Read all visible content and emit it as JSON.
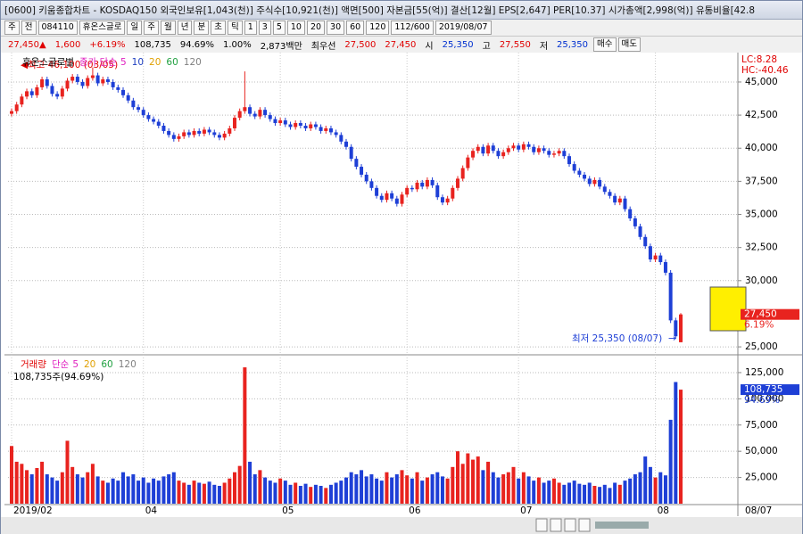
{
  "window": {
    "title": "[0600] 키움종합차트 - KOSDAQ150 외국인보유[1,043(천)] 주식수[10,921(천)] 액면[500] 자본금[55(억)] 결산[12월] EPS[2,647] PER[10.37] 시가총액[2,998(억)] 유통비율[42.8"
  },
  "toolbar": {
    "items": [
      "주",
      "전",
      "084110",
      "휴온스글로",
      "일",
      "주",
      "월",
      "년",
      "분",
      "초",
      "틱",
      "1",
      "3",
      "5",
      "10",
      "20",
      "30",
      "60",
      "120",
      "112/600",
      "2019/08/07"
    ]
  },
  "info": {
    "cells": [
      {
        "text": "27,450▲",
        "color": "#e00000"
      },
      {
        "text": "1,600",
        "color": "#e00000"
      },
      {
        "text": "+6.19%",
        "color": "#e00000"
      },
      {
        "text": "108,735",
        "color": "#000000"
      },
      {
        "text": "94.69%",
        "color": "#000000"
      },
      {
        "text": "1.00%",
        "color": "#000000"
      },
      {
        "text": "2,873백만",
        "color": "#000000"
      },
      {
        "text": "최우선",
        "color": "#000000"
      },
      {
        "text": "27,500",
        "color": "#e00000"
      },
      {
        "text": "27,450",
        "color": "#e00000"
      },
      {
        "text": "시",
        "color": "#000000"
      },
      {
        "text": "25,350",
        "color": "#0030d0"
      },
      {
        "text": "고",
        "color": "#000000"
      },
      {
        "text": "27,550",
        "color": "#e00000"
      },
      {
        "text": "저",
        "color": "#000000"
      },
      {
        "text": "25,350",
        "color": "#0030d0"
      }
    ],
    "buttons": [
      "매수",
      "매도"
    ]
  },
  "chart_data": [
    {
      "type": "candlestick",
      "title": "휴온스글로벌",
      "ma_label": "종가 단순",
      "ma_periods": [
        "5",
        "10",
        "20",
        "60",
        "120"
      ],
      "ma_colors": [
        "#e020c0",
        "#2040c0",
        "#e0a000",
        "#20a040",
        "#808080"
      ],
      "up_color": "#e8231f",
      "down_color": "#1e3fd6",
      "lc": "LC:8.28",
      "hc": "HC:-40.46",
      "high_note": "최고 46,100 (03/05)",
      "low_note": "최저 25,350 (08/07)",
      "last_date": "08/07",
      "current_tag": {
        "value": 27450,
        "label": "27,450",
        "pct": "6.19%"
      },
      "ylim": [
        24400,
        46950
      ],
      "yticks": [
        {
          "value": 25000,
          "label": "25,000"
        },
        {
          "value": 30000,
          "label": "30,000"
        },
        {
          "value": 32500,
          "label": "32,500"
        },
        {
          "value": 35000,
          "label": "35,000"
        },
        {
          "value": 37500,
          "label": "37,500"
        },
        {
          "value": 40000,
          "label": "40,000"
        },
        {
          "value": 42500,
          "label": "42,500"
        },
        {
          "value": 45000,
          "label": "45,000"
        }
      ],
      "categories": [
        "2019/02",
        null,
        null,
        null,
        null,
        null,
        null,
        null,
        null,
        null,
        null,
        null,
        null,
        null,
        null,
        null,
        null,
        null,
        null,
        null,
        null,
        null,
        null,
        null,
        null,
        null,
        "04",
        null,
        null,
        null,
        null,
        null,
        null,
        null,
        null,
        null,
        null,
        null,
        null,
        null,
        null,
        null,
        null,
        null,
        null,
        null,
        null,
        null,
        null,
        null,
        null,
        null,
        null,
        "05",
        null,
        null,
        null,
        null,
        null,
        null,
        null,
        null,
        null,
        null,
        null,
        null,
        null,
        null,
        null,
        null,
        null,
        null,
        null,
        null,
        null,
        null,
        null,
        null,
        "06",
        null,
        null,
        null,
        null,
        null,
        null,
        null,
        null,
        null,
        null,
        null,
        null,
        null,
        null,
        null,
        null,
        null,
        null,
        null,
        null,
        null,
        "07",
        null,
        null,
        null,
        null,
        null,
        null,
        null,
        null,
        null,
        null,
        null,
        null,
        null,
        null,
        null,
        null,
        null,
        null,
        null,
        null,
        null,
        null,
        null,
        null,
        null,
        null,
        "08",
        null,
        null,
        null,
        null,
        null
      ],
      "open": [
        42600,
        42800,
        43300,
        43900,
        44300,
        44000,
        44600,
        45200,
        44700,
        44100,
        43900,
        44500,
        45100,
        45400,
        45000,
        44700,
        45300,
        45500,
        44900,
        45200,
        45000,
        44600,
        44400,
        44000,
        43600,
        43100,
        42900,
        42500,
        42200,
        42000,
        41700,
        41300,
        41000,
        40700,
        40900,
        41200,
        41000,
        41300,
        41100,
        41400,
        41200,
        41000,
        40800,
        41100,
        41500,
        42300,
        42800,
        43100,
        42600,
        42400,
        42900,
        42500,
        42200,
        41900,
        42100,
        41800,
        41600,
        41900,
        41700,
        41500,
        41800,
        41600,
        41300,
        41500,
        41200,
        41000,
        40500,
        40100,
        39200,
        38600,
        38000,
        37500,
        37000,
        36400,
        36100,
        36600,
        36200,
        35800,
        36500,
        37000,
        36900,
        37400,
        37100,
        37600,
        37200,
        36300,
        35900,
        36200,
        37000,
        37700,
        38500,
        39300,
        39800,
        40100,
        39600,
        40200,
        39800,
        39400,
        39700,
        40000,
        40200,
        39900,
        40300,
        40100,
        39700,
        40000,
        39800,
        39500,
        39600,
        39800,
        39400,
        38800,
        38300,
        38000,
        37700,
        37300,
        37600,
        37100,
        36700,
        36400,
        35900,
        36200,
        35400,
        34700,
        34100,
        33300,
        32600,
        31600,
        31900,
        31400,
        30600,
        27000,
        25350
      ],
      "high": [
        43000,
        43500,
        44100,
        44500,
        44500,
        44800,
        45400,
        45400,
        44900,
        44300,
        44700,
        45300,
        45600,
        45600,
        45200,
        45500,
        46100,
        45700,
        45400,
        45400,
        45200,
        44800,
        44600,
        44200,
        43800,
        43300,
        43100,
        42700,
        42400,
        42200,
        41900,
        41500,
        41200,
        41100,
        41400,
        41400,
        41500,
        41500,
        41600,
        41600,
        41400,
        41200,
        41300,
        41700,
        42500,
        43000,
        45800,
        43300,
        42800,
        43100,
        43100,
        42700,
        42400,
        42300,
        42300,
        42000,
        42100,
        42100,
        41900,
        42000,
        42000,
        41800,
        41700,
        41700,
        41400,
        41200,
        40700,
        40300,
        39400,
        38800,
        38200,
        37700,
        37200,
        36600,
        36800,
        36800,
        36400,
        36700,
        37200,
        37200,
        37600,
        37600,
        37800,
        37800,
        37400,
        36500,
        36400,
        37200,
        37900,
        38700,
        39500,
        40000,
        40300,
        40300,
        40400,
        40400,
        40000,
        39900,
        40200,
        40400,
        40400,
        40500,
        40500,
        40300,
        40200,
        40200,
        40000,
        39800,
        40000,
        40000,
        39600,
        39000,
        38500,
        38200,
        37900,
        37800,
        37800,
        37300,
        36900,
        36600,
        36400,
        36400,
        35600,
        34900,
        34300,
        33500,
        32800,
        32100,
        32100,
        31600,
        30800,
        27200,
        27550
      ],
      "low": [
        42400,
        42600,
        43100,
        43700,
        43800,
        43800,
        44400,
        44500,
        43900,
        43700,
        43700,
        44300,
        44900,
        44800,
        44500,
        44500,
        45100,
        44700,
        44700,
        44800,
        44400,
        44200,
        43800,
        43400,
        42900,
        42700,
        42300,
        42000,
        41800,
        41500,
        41100,
        40800,
        40500,
        40500,
        40700,
        40800,
        40800,
        40900,
        40900,
        41000,
        40800,
        40600,
        40600,
        40900,
        41300,
        42100,
        42600,
        42400,
        42200,
        42200,
        42300,
        42000,
        41700,
        41700,
        41600,
        41400,
        41400,
        41500,
        41300,
        41300,
        41400,
        41100,
        41100,
        41000,
        40800,
        40300,
        39900,
        39000,
        38400,
        37800,
        37300,
        36800,
        36200,
        35900,
        35900,
        36000,
        35600,
        35600,
        36300,
        36700,
        36700,
        36900,
        36900,
        37000,
        36100,
        35700,
        35700,
        36000,
        36800,
        37500,
        38300,
        39100,
        39600,
        39400,
        39400,
        39600,
        39200,
        39200,
        39500,
        39800,
        39700,
        39700,
        39900,
        39500,
        39500,
        39600,
        39300,
        39300,
        39400,
        39200,
        38600,
        38100,
        37800,
        37500,
        37100,
        37100,
        36900,
        36500,
        36200,
        35700,
        35700,
        35200,
        34500,
        33900,
        33100,
        32400,
        31400,
        31400,
        31200,
        30400,
        26800,
        25600,
        25350
      ],
      "close": [
        42800,
        43300,
        43900,
        44300,
        44000,
        44600,
        45200,
        44700,
        44100,
        43900,
        44500,
        45100,
        45400,
        45000,
        44700,
        45300,
        45500,
        44900,
        45200,
        45000,
        44600,
        44400,
        44000,
        43600,
        43100,
        42900,
        42500,
        42200,
        42000,
        41700,
        41300,
        41000,
        40700,
        40900,
        41200,
        41000,
        41300,
        41100,
        41400,
        41200,
        41000,
        40800,
        41100,
        41500,
        42300,
        42800,
        43100,
        42600,
        42400,
        42900,
        42500,
        42200,
        41900,
        42100,
        41800,
        41600,
        41900,
        41700,
        41500,
        41800,
        41600,
        41300,
        41500,
        41200,
        41000,
        40500,
        40100,
        39200,
        38600,
        38000,
        37500,
        37000,
        36400,
        36100,
        36600,
        36200,
        35800,
        36500,
        37000,
        36900,
        37400,
        37100,
        37600,
        37200,
        36300,
        35900,
        36200,
        37000,
        37700,
        38500,
        39300,
        39800,
        40100,
        39600,
        40200,
        39800,
        39400,
        39700,
        40000,
        40200,
        39900,
        40300,
        40100,
        39700,
        40000,
        39800,
        39500,
        39600,
        39800,
        39400,
        38800,
        38300,
        38000,
        37700,
        37300,
        37600,
        37100,
        36700,
        36400,
        35900,
        36200,
        35400,
        34700,
        34100,
        33300,
        32600,
        31600,
        31900,
        31400,
        30600,
        27000,
        25800,
        27450
      ]
    },
    {
      "type": "bar",
      "title": "거래량",
      "ma_label": "단순",
      "ma_periods": [
        "5",
        "20",
        "60",
        "120"
      ],
      "ma_colors": [
        "#e020c0",
        "#e0a000",
        "#20a040",
        "#808080"
      ],
      "volume_note": "108,735주(94.69%)",
      "current_tag": {
        "value": 108735,
        "label": "108,735",
        "pct": "94.69%"
      },
      "ylim": [
        0,
        139400
      ],
      "yticks": [
        {
          "value": 25000,
          "label": "25,000"
        },
        {
          "value": 50000,
          "label": "50,000"
        },
        {
          "value": 75000,
          "label": "75,000"
        },
        {
          "value": 100000,
          "label": "100,000"
        },
        {
          "value": 125000,
          "label": "125,000"
        }
      ],
      "values": [
        55000,
        40000,
        38000,
        32000,
        28000,
        34000,
        40000,
        28000,
        25000,
        22000,
        30000,
        60000,
        35000,
        28000,
        25000,
        30000,
        38000,
        26000,
        22000,
        20000,
        24000,
        22000,
        30000,
        26000,
        28000,
        22000,
        25000,
        20000,
        24000,
        22000,
        26000,
        28000,
        30000,
        22000,
        20000,
        18000,
        22000,
        20000,
        19000,
        21000,
        18000,
        17000,
        20000,
        24000,
        30000,
        36000,
        130000,
        40000,
        28000,
        32000,
        25000,
        22000,
        20000,
        24000,
        22000,
        18000,
        20000,
        17000,
        19000,
        16000,
        18000,
        17000,
        15000,
        18000,
        20000,
        22000,
        25000,
        30000,
        28000,
        32000,
        26000,
        28000,
        24000,
        22000,
        30000,
        25000,
        28000,
        32000,
        27000,
        24000,
        30000,
        22000,
        25000,
        28000,
        30000,
        26000,
        24000,
        35000,
        50000,
        38000,
        48000,
        42000,
        45000,
        32000,
        40000,
        30000,
        25000,
        28000,
        30000,
        35000,
        24000,
        30000,
        26000,
        22000,
        25000,
        20000,
        22000,
        24000,
        20000,
        18000,
        20000,
        22000,
        19000,
        18000,
        20000,
        17000,
        16000,
        18000,
        15000,
        20000,
        18000,
        22000,
        24000,
        28000,
        30000,
        45000,
        35000,
        25000,
        30000,
        27000,
        80000,
        116000,
        108735
      ]
    }
  ]
}
